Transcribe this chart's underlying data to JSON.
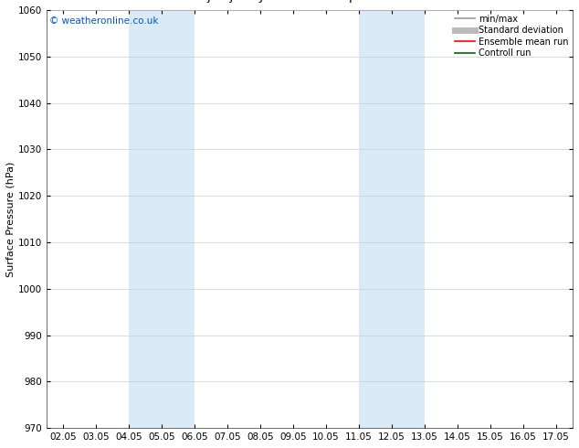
{
  "ylabel": "Surface Pressure (hPa)",
  "watermark": "© weatheronline.co.uk",
  "watermark_color": "#0055cc",
  "xlim_min": 1.5,
  "xlim_max": 17.5,
  "ylim_min": 970,
  "ylim_max": 1060,
  "yticks": [
    970,
    980,
    990,
    1000,
    1010,
    1020,
    1030,
    1040,
    1050,
    1060
  ],
  "xtick_labels": [
    "02.05",
    "03.05",
    "04.05",
    "05.05",
    "06.05",
    "07.05",
    "08.05",
    "09.05",
    "10.05",
    "11.05",
    "12.05",
    "13.05",
    "14.05",
    "15.05",
    "16.05",
    "17.05"
  ],
  "xtick_positions": [
    2,
    3,
    4,
    5,
    6,
    7,
    8,
    9,
    10,
    11,
    12,
    13,
    14,
    15,
    16,
    17
  ],
  "shaded_bands": [
    {
      "xmin": 4.0,
      "xmax": 6.0
    },
    {
      "xmin": 11.0,
      "xmax": 13.0
    }
  ],
  "band_color": "#daeaf7",
  "background_color": "#ffffff",
  "grid_color": "#cccccc",
  "legend_items": [
    {
      "label": "min/max",
      "color": "#999999",
      "lw": 1.2
    },
    {
      "label": "Standard deviation",
      "color": "#bbbbbb",
      "lw": 5
    },
    {
      "label": "Ensemble mean run",
      "color": "#ff0000",
      "lw": 1.2
    },
    {
      "label": "Controll run",
      "color": "#006600",
      "lw": 1.2
    }
  ],
  "title_fontsize": 9.5,
  "axis_label_fontsize": 8,
  "tick_fontsize": 7.5,
  "legend_fontsize": 7,
  "watermark_fontsize": 7.5
}
